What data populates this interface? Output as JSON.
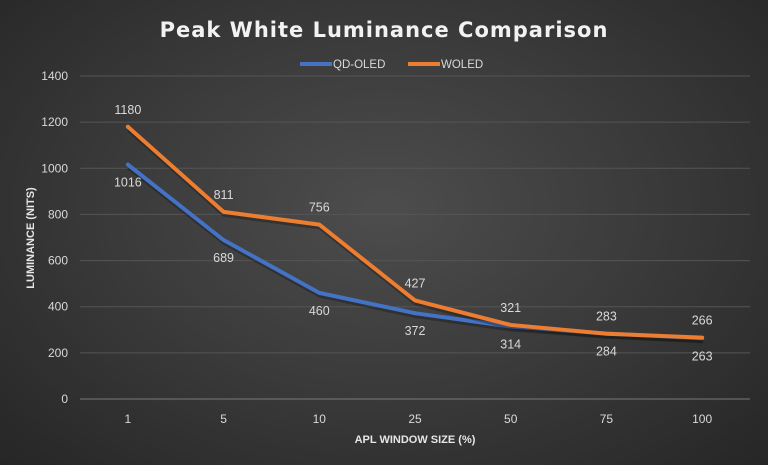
{
  "chart_data": {
    "type": "line",
    "title": "Peak White Luminance Comparison",
    "xlabel": "APL WINDOW SIZE (%)",
    "ylabel": "LUMINANCE (NITS)",
    "categories": [
      "1",
      "5",
      "10",
      "25",
      "50",
      "75",
      "100"
    ],
    "ylim": [
      0,
      1400
    ],
    "yticks": [
      0,
      200,
      400,
      600,
      800,
      1000,
      1200,
      1400
    ],
    "grid": true,
    "legend": "top",
    "series": [
      {
        "name": "QD-OLED",
        "color": "#4472C4",
        "values": [
          1016,
          689,
          460,
          372,
          314,
          284,
          263
        ],
        "label_position": "below"
      },
      {
        "name": "WOLED",
        "color": "#ED7D31",
        "values": [
          1180,
          811,
          756,
          427,
          321,
          283,
          266
        ],
        "label_position": "above"
      }
    ]
  }
}
